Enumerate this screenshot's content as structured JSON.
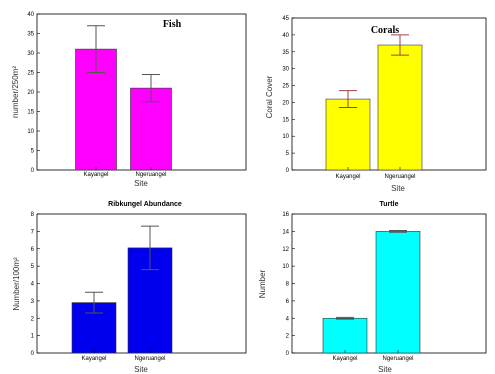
{
  "chart_data": [
    {
      "type": "bar",
      "title": "Fish",
      "xlabel": "Site",
      "ylabel": "number/250m²",
      "ylim": [
        0,
        40
      ],
      "yticks": [
        0,
        5,
        10,
        15,
        20,
        25,
        30,
        35,
        40
      ],
      "categories": [
        "Kayangel",
        "Ngeruangel"
      ],
      "values": [
        31,
        21
      ],
      "errors": [
        6,
        3.5
      ],
      "bar_color": "#ff00ff",
      "error_color": "#555555",
      "grid": false,
      "legend": "none"
    },
    {
      "type": "bar",
      "title": "Corals",
      "xlabel": "Site",
      "ylabel": "Coral Cover",
      "ylim": [
        0,
        45
      ],
      "yticks": [
        0,
        5,
        10,
        15,
        20,
        25,
        30,
        35,
        40,
        45
      ],
      "categories": [
        "Kayangel",
        "Ngeruangel"
      ],
      "values": [
        21,
        37
      ],
      "errors": [
        2.5,
        3
      ],
      "bar_color": "#ffff00",
      "error_color": "#a04040",
      "grid": false,
      "legend": "none"
    },
    {
      "type": "bar",
      "title": "Ribkungel Abundance",
      "xlabel": "Site",
      "ylabel": "Number/100m²",
      "ylim": [
        0,
        8
      ],
      "yticks": [
        0,
        1,
        2,
        3,
        4,
        5,
        6,
        7,
        8
      ],
      "categories": [
        "Kayangel",
        "Ngeruangel"
      ],
      "values": [
        2.9,
        6.05
      ],
      "errors": [
        0.6,
        1.25
      ],
      "bar_color": "#0000ee",
      "error_color": "#555555",
      "grid": false,
      "legend": "none"
    },
    {
      "type": "bar",
      "title": "Turtle",
      "xlabel": "Site",
      "ylabel": "Number",
      "ylim": [
        0,
        16
      ],
      "yticks": [
        0,
        2,
        4,
        6,
        8,
        10,
        12,
        14,
        16
      ],
      "categories": [
        "Kayangel",
        "Ngeruangel"
      ],
      "values": [
        4,
        14
      ],
      "errors": [
        0.1,
        0.1
      ],
      "bar_color": "#00ffff",
      "error_color": "#555555",
      "grid": false,
      "legend": "none"
    }
  ]
}
